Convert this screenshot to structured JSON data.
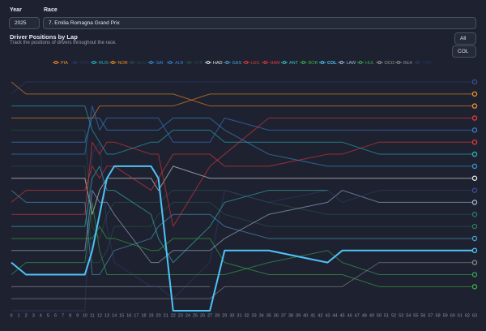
{
  "form": {
    "year_label": "Year",
    "year": "2025",
    "race_label": "Race",
    "race": "7. Emilia Romagna Grand Prix"
  },
  "chart_data": {
    "type": "line",
    "title": "Driver Positions by Lap",
    "subtitle": "Track the positions of drivers throughout the race.",
    "filter": "All",
    "selected": "COL",
    "x": [
      0,
      2,
      10,
      11,
      12,
      13,
      14,
      19,
      20,
      22,
      27,
      29,
      35,
      43,
      45,
      50,
      55,
      63
    ],
    "xlim": [
      0,
      63
    ],
    "xticks": [
      0,
      1,
      2,
      3,
      4,
      5,
      6,
      7,
      8,
      9,
      10,
      11,
      12,
      13,
      14,
      15,
      16,
      17,
      18,
      19,
      20,
      21,
      22,
      23,
      24,
      25,
      26,
      27,
      28,
      29,
      30,
      31,
      32,
      33,
      34,
      35,
      36,
      37,
      38,
      39,
      40,
      41,
      42,
      43,
      44,
      45,
      46,
      47,
      48,
      49,
      50,
      51,
      52,
      53,
      54,
      55,
      56,
      57,
      58,
      59,
      60,
      61,
      62,
      63
    ],
    "ylim": [
      1,
      20
    ],
    "y_reversed": true,
    "series": [
      {
        "name": "PIA",
        "color": "#f28c28",
        "values": [
          1,
          2,
          2,
          2,
          2,
          2,
          2,
          2,
          2,
          2,
          3,
          3,
          3,
          3,
          3,
          3,
          3,
          3
        ]
      },
      {
        "name": "VER",
        "color": "#3b4f9a",
        "dimmed": true,
        "values": [
          2,
          1,
          1,
          1,
          1,
          1,
          1,
          1,
          1,
          1,
          1,
          1,
          1,
          1,
          1,
          1,
          1,
          1
        ]
      },
      {
        "name": "RUS",
        "color": "#27b5c4",
        "values": [
          3,
          3,
          3,
          5,
          6,
          7,
          7,
          6,
          6,
          5,
          5,
          6,
          6,
          6,
          6,
          7,
          7,
          7
        ]
      },
      {
        "name": "NOR",
        "color": "#f5901e",
        "values": [
          4,
          4,
          4,
          4,
          3,
          3,
          3,
          3,
          3,
          3,
          2,
          2,
          2,
          2,
          2,
          2,
          2,
          2
        ]
      },
      {
        "name": "ALO",
        "color": "#2a7b62",
        "dimmed": true,
        "values": [
          5,
          5,
          5,
          13,
          14,
          12,
          11,
          11,
          11,
          10,
          10,
          10,
          11,
          12,
          12,
          12,
          12,
          12
        ]
      },
      {
        "name": "SAI",
        "color": "#3a8fd6",
        "values": [
          6,
          6,
          6,
          4,
          4,
          5,
          5,
          5,
          5,
          4,
          4,
          5,
          7,
          8,
          8,
          8,
          8,
          8
        ]
      },
      {
        "name": "ALB",
        "color": "#3b7ed0",
        "values": [
          7,
          7,
          7,
          3,
          5,
          4,
          4,
          4,
          4,
          6,
          6,
          4,
          5,
          5,
          5,
          5,
          5,
          5
        ]
      },
      {
        "name": "STR",
        "color": "#2a7b62",
        "dimmed": true,
        "values": [
          8,
          8,
          8,
          16,
          16,
          15,
          13,
          13,
          12,
          11,
          11,
          12,
          13,
          13,
          13,
          13,
          13,
          13
        ]
      },
      {
        "name": "HAD",
        "color": "#e6e6e6",
        "values": [
          9,
          9,
          9,
          12,
          10,
          9,
          9,
          9,
          10,
          8,
          9,
          9,
          9,
          9,
          9,
          9,
          9,
          9
        ]
      },
      {
        "name": "GAS",
        "color": "#4aa0c8",
        "values": [
          10,
          11,
          11,
          17,
          17,
          16,
          15,
          14,
          13,
          12,
          12,
          13,
          14,
          14,
          14,
          14,
          14,
          14
        ]
      },
      {
        "name": "LEC",
        "color": "#e8383d",
        "values": [
          11,
          10,
          10,
          8,
          9,
          8,
          8,
          10,
          9,
          7,
          7,
          8,
          8,
          7,
          7,
          6,
          6,
          6
        ]
      },
      {
        "name": "HAM",
        "color": "#e8383d",
        "values": [
          12,
          12,
          12,
          6,
          7,
          6,
          6,
          7,
          7,
          13,
          8,
          7,
          4,
          4,
          4,
          4,
          4,
          4
        ]
      },
      {
        "name": "ANT",
        "color": "#35c0c0",
        "values": [
          13,
          13,
          13,
          9,
          8,
          10,
          10,
          12,
          14,
          16,
          13,
          11,
          10,
          10,
          null,
          null,
          null,
          null
        ]
      },
      {
        "name": "BOR",
        "color": "#3cb043",
        "values": [
          14,
          14,
          14,
          14,
          13,
          14,
          14,
          15,
          15,
          14,
          14,
          16,
          17,
          17,
          17,
          18,
          18,
          18
        ]
      },
      {
        "name": "COL",
        "color": "#4fc3f7",
        "values": [
          16,
          17,
          17,
          15,
          12,
          9,
          8,
          8,
          9,
          20,
          20,
          15,
          15,
          16,
          15,
          15,
          15,
          15
        ]
      },
      {
        "name": "LAW",
        "color": "#9fb8d8",
        "values": [
          15,
          15,
          15,
          10,
          11,
          11,
          12,
          16,
          16,
          15,
          15,
          14,
          12,
          11,
          10,
          11,
          11,
          11
        ]
      },
      {
        "name": "HUL",
        "color": "#34a853",
        "values": [
          17,
          16,
          16,
          11,
          15,
          17,
          17,
          17,
          17,
          17,
          17,
          17,
          16,
          15,
          16,
          17,
          17,
          17
        ]
      },
      {
        "name": "OCO",
        "color": "#9a9a9a",
        "values": [
          18,
          18,
          18,
          18,
          18,
          18,
          18,
          18,
          18,
          18,
          18,
          null,
          null,
          null,
          null,
          null,
          null,
          null
        ]
      },
      {
        "name": "BEA",
        "color": "#8a8a8a",
        "values": [
          19,
          19,
          19,
          19,
          19,
          19,
          19,
          19,
          19,
          19,
          19,
          18,
          18,
          18,
          18,
          16,
          16,
          16
        ]
      },
      {
        "name": "TSU",
        "color": "#3b4f9a",
        "dimmed": true,
        "values": [
          20,
          20,
          20,
          7,
          6,
          13,
          16,
          18,
          18,
          19,
          16,
          10,
          11,
          10,
          11,
          10,
          10,
          10
        ]
      }
    ]
  }
}
